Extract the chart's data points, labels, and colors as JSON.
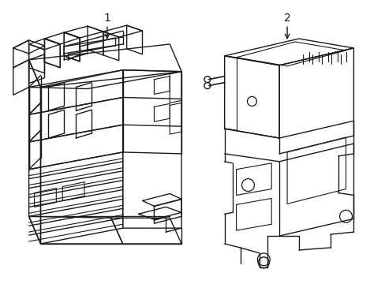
{
  "background_color": "#ffffff",
  "line_color": "#1a1a1a",
  "line_width": 1.0,
  "label1": "1",
  "label2": "2",
  "figsize": [
    4.89,
    3.6
  ],
  "dpi": 100
}
